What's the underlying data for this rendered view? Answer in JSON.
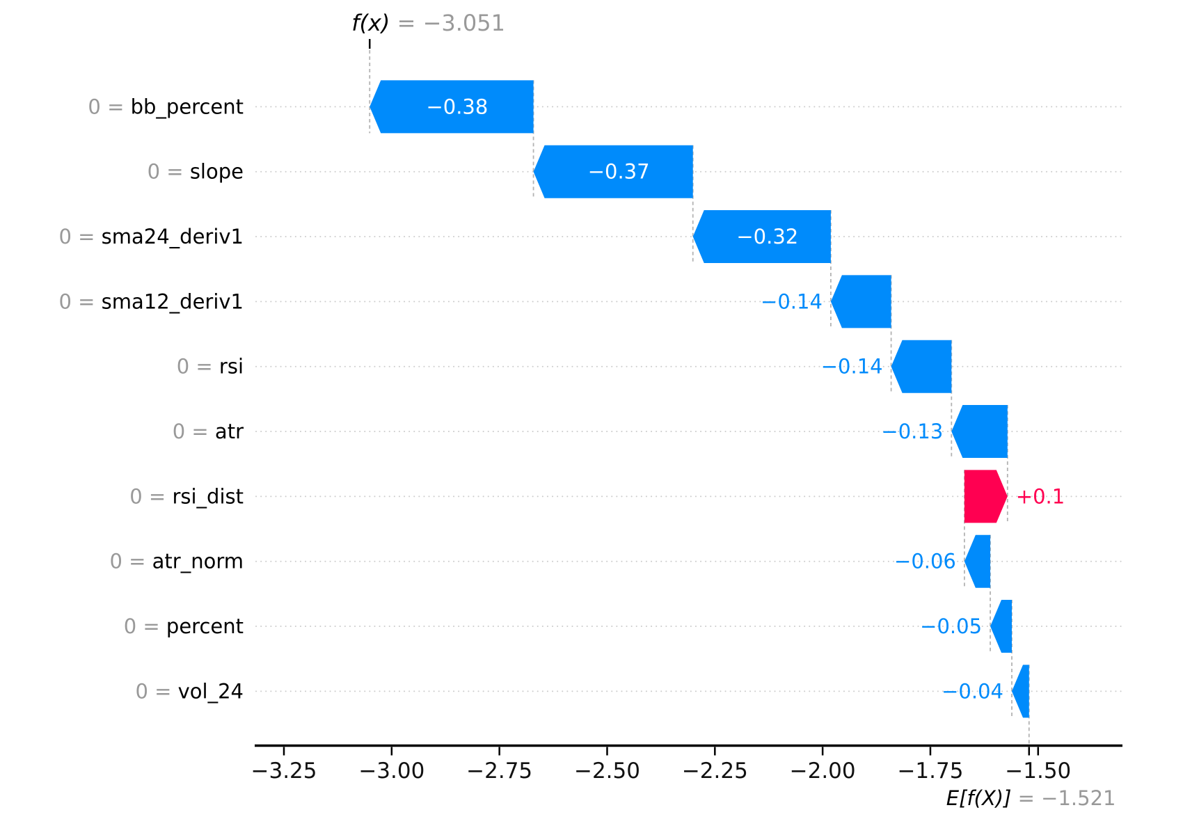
{
  "figure": {
    "background": "#ffffff"
  },
  "chart_data": {
    "type": "bar",
    "variant": "shap-waterfall",
    "orientation": "horizontal",
    "title": "f(x) = −3.051",
    "fx": {
      "label": "f(x)",
      "suffix": " = −3.051",
      "value": -3.051
    },
    "expected": {
      "label": "E[f(X)]",
      "suffix": " = −1.521",
      "value": -1.521
    },
    "xlim": [
      -3.3146,
      -1.3059
    ],
    "grid": "dotted-horizontal-per-row",
    "x_ticks": [
      {
        "value": -3.25,
        "label": "−3.25"
      },
      {
        "value": -3.0,
        "label": "−3.00"
      },
      {
        "value": -2.75,
        "label": "−2.75"
      },
      {
        "value": -2.5,
        "label": "−2.50"
      },
      {
        "value": -2.25,
        "label": "−2.25"
      },
      {
        "value": -2.0,
        "label": "−2.00"
      },
      {
        "value": -1.75,
        "label": "−1.75"
      },
      {
        "value": -1.5,
        "label": "−1.50"
      }
    ],
    "features": [
      {
        "name": "bb_percent",
        "prefix": "0 = ",
        "shap": -0.38,
        "value_label": "−0.38"
      },
      {
        "name": "slope",
        "prefix": "0 = ",
        "shap": -0.37,
        "value_label": "−0.37"
      },
      {
        "name": "sma24_deriv1",
        "prefix": "0 = ",
        "shap": -0.32,
        "value_label": "−0.32"
      },
      {
        "name": "sma12_deriv1",
        "prefix": "0 = ",
        "shap": -0.14,
        "value_label": "−0.14"
      },
      {
        "name": "rsi",
        "prefix": "0 = ",
        "shap": -0.14,
        "value_label": "−0.14"
      },
      {
        "name": "atr",
        "prefix": "0 = ",
        "shap": -0.13,
        "value_label": "−0.13"
      },
      {
        "name": "rsi_dist",
        "prefix": "0 = ",
        "shap": 0.1,
        "value_label": "+0.1"
      },
      {
        "name": "atr_norm",
        "prefix": "0 = ",
        "shap": -0.06,
        "value_label": "−0.06"
      },
      {
        "name": "percent",
        "prefix": "0 = ",
        "shap": -0.05,
        "value_label": "−0.05"
      },
      {
        "name": "vol_24",
        "prefix": "0 = ",
        "shap": -0.04,
        "value_label": "−0.04"
      }
    ],
    "colors": {
      "positive": "#ff0051",
      "negative": "#008bfb",
      "inside_label": "#ffffff",
      "feature_name": "#000000",
      "feature_prefix": "#999999",
      "muted": "#999999",
      "axis": "#000000",
      "tick_label": "#111111",
      "gridline": "#cccccc",
      "dashed": "#b3b3b3"
    }
  }
}
